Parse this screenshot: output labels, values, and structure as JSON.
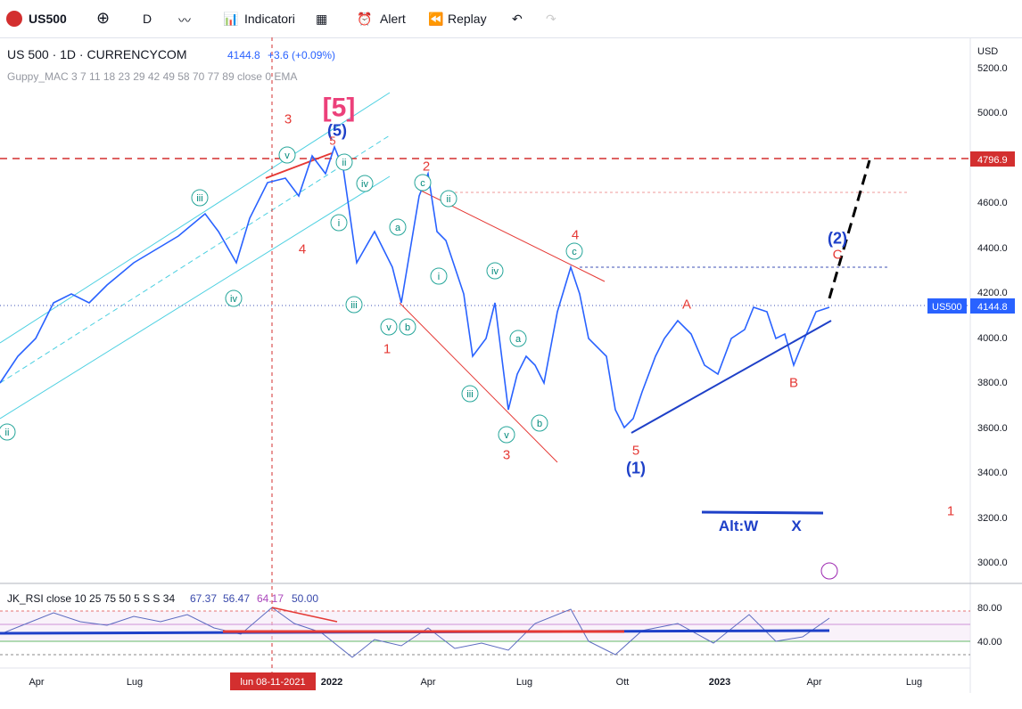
{
  "toolbar": {
    "symbol": "US500",
    "interval": "D",
    "indicators": "Indicatori",
    "alert": "Alert",
    "replay": "Replay"
  },
  "header": {
    "title": "US 500 · 1D · CURRENCYCOM",
    "price": "4144.8",
    "change": "+3.6 (+0.09%)",
    "indicator": "Guppy_MAC 3 7 11 18 23 29 42 49 58 70 77 89 close 0 EMA"
  },
  "price_axis": {
    "currency": "USD",
    "labels": [
      "5200.0",
      "5000.0",
      "4600.0",
      "4400.0",
      "4200.0",
      "4000.0",
      "3800.0",
      "3600.0",
      "3400.0",
      "3200.0",
      "3000.0"
    ],
    "badge_high": "4796.9",
    "badge_symbol": "US500",
    "badge_last": "4144.8"
  },
  "annotations": [
    "[5]",
    "(5)",
    "3",
    "5",
    "v",
    "ii",
    "iii",
    "iv",
    "i",
    "4",
    "iv",
    "iii",
    "ii",
    "2",
    "c",
    "ii",
    "a",
    "i",
    "v",
    "b",
    "1",
    "iv",
    "a",
    "iii",
    "v",
    "b",
    "3",
    "4",
    "c",
    "5",
    "(1)",
    "A",
    "B",
    "(2)",
    "C",
    "Alt:W",
    "X",
    "1"
  ],
  "rsi": {
    "title": "JK_RSI close 10 25 75 50 5 S S 34",
    "v1": "67.37",
    "v2": "56.47",
    "v3": "64.17",
    "v4": "50.00",
    "axis": [
      "80.00",
      "40.00"
    ]
  },
  "time_axis": {
    "labels": [
      "Apr",
      "Lug",
      "2022",
      "Apr",
      "Lug",
      "Ott",
      "2023",
      "Apr",
      "Lug"
    ],
    "crosshair": "lun 08-11-2021"
  }
}
